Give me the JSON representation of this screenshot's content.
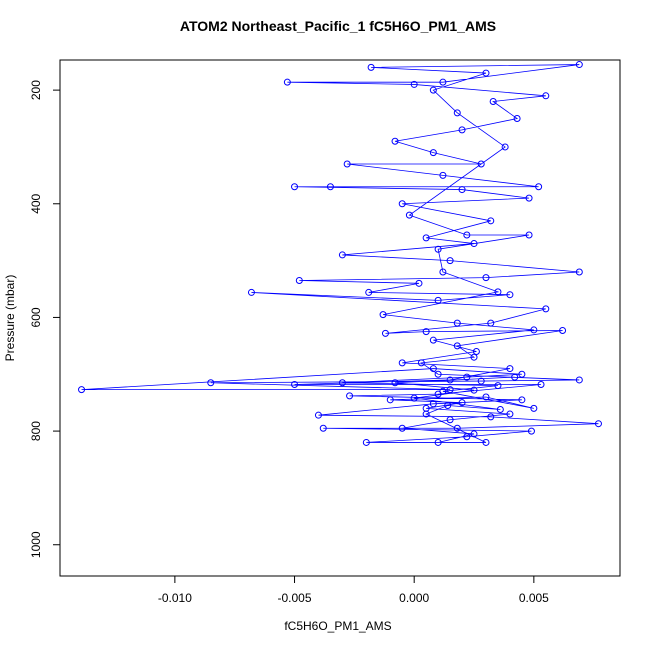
{
  "chart_data": {
    "type": "scatter-line",
    "title": "ATOM2 Northeast_Pacific_1 fC5H6O_PM1_AMS",
    "x_label": "fC5H6O_PM1_AMS",
    "y_label": "Pressure (mbar)",
    "xlim": [
      -0.0148,
      0.0086
    ],
    "ylim": [
      1055,
      147
    ],
    "xticks": [
      {
        "value": -0.01,
        "label": "-0.010"
      },
      -0.005,
      {
        "value": 0,
        "label": "0.000"
      },
      0.005
    ],
    "yticks": [
      200,
      400,
      600,
      800,
      1000
    ],
    "series": [
      {
        "color": "#0000ff",
        "x": [
          0.001,
          0.0025,
          -0.0005,
          0.0015,
          0.004,
          0.0005,
          0.002,
          -0.001,
          0.003,
          0.005,
          0.0012,
          0.0035,
          -0.003,
          0.0022,
          0.0045,
          0.0008,
          -0.0139,
          0.0015,
          -0.0085,
          0.0028,
          0.0069,
          0.001,
          0.0003,
          0.0025,
          0.0018,
          0.0062,
          0.0005,
          -0.0012,
          0.0032,
          0.0055,
          -0.0068,
          0.001,
          0.004,
          -0.0019,
          0.0002,
          -0.0048,
          0.003,
          0.0069,
          0.0015,
          -0.003,
          0.0025,
          0.0005,
          0.0032,
          -0.0005,
          0.0048,
          0.002,
          -0.005,
          -0.0035,
          0.0052,
          0.0012,
          -0.0028,
          0.0028,
          0.0008,
          -0.0008,
          0.002,
          0.0043,
          0.0033,
          0.0055,
          0.0,
          -0.0053,
          0.0012,
          0.0069,
          -0.0018,
          0.003,
          0.0008,
          0.0018,
          0.0038,
          -0.0002,
          0.0022,
          0.0048,
          0.001,
          0.0012,
          0.0035,
          -0.0013,
          0.0018,
          0.005,
          0.0008,
          0.0026,
          -0.0005,
          0.004,
          0.0015,
          -0.005,
          0.0053,
          0.001,
          -0.0027,
          0.0045,
          0.0008,
          -0.004,
          0.0032,
          0.0077,
          0.0018,
          -0.0038,
          0.0049,
          0.0022,
          -0.002,
          0.003,
          0.0005,
          0.0014,
          0.0036,
          0.0,
          0.0025,
          -0.0008,
          0.0042
        ],
        "values": [
          820,
          805,
          795,
          780,
          770,
          760,
          750,
          745,
          740,
          760,
          730,
          720,
          715,
          705,
          700,
          690,
          727,
          727,
          715,
          712,
          710,
          700,
          680,
          670,
          650,
          623,
          625,
          628,
          610,
          585,
          556,
          570,
          560,
          556,
          540,
          535,
          530,
          520,
          500,
          490,
          470,
          460,
          430,
          400,
          390,
          375,
          370,
          370,
          370,
          350,
          330,
          330,
          310,
          290,
          270,
          250,
          220,
          210,
          190,
          186,
          186,
          155,
          160,
          170,
          200,
          240,
          300,
          420,
          455,
          455,
          480,
          520,
          555,
          595,
          610,
          622,
          640,
          660,
          680,
          690,
          710,
          718,
          718,
          735,
          738,
          745,
          752,
          772,
          775,
          787,
          795,
          795,
          800,
          810,
          820,
          820,
          770,
          755,
          762,
          742,
          728,
          715,
          705
        ]
      }
    ]
  }
}
